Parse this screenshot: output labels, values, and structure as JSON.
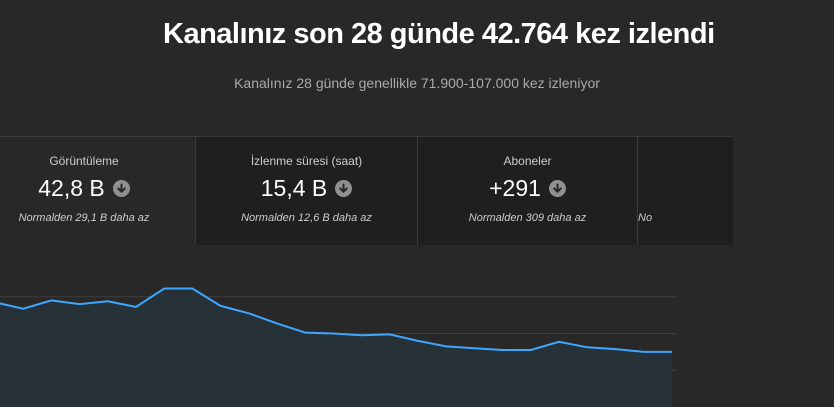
{
  "header": {
    "title": "Kanalınız son 28 günde 42.764 kez izlendi",
    "subtitle": "Kanalınız 28 günde genellikle 71.900-107.000 kez izleniyor"
  },
  "metrics": [
    {
      "label": "Görüntüleme",
      "value": "42,8 B",
      "note": "Normalden 29,1 B daha az",
      "trend_icon": "arrow-down-circle-icon"
    },
    {
      "label": "İzlenme süresi (saat)",
      "value": "15,4 B",
      "note": "Normalden 12,6 B daha az",
      "trend_icon": "arrow-down-circle-icon"
    },
    {
      "label": "Aboneler",
      "value": "+291",
      "note": "Normalden 309 daha az",
      "trend_icon": "arrow-down-circle-icon"
    },
    {
      "label": "",
      "value": "",
      "note": "No",
      "trend_icon": ""
    }
  ],
  "colors": {
    "background": "#282828",
    "card_background": "#1f1f1f",
    "line": "#3ea6ff",
    "area_fill": "#263238",
    "text_secondary": "#aaaaaa"
  },
  "chart_data": {
    "type": "area",
    "title": "",
    "xlabel": "",
    "ylabel": "",
    "grid": true,
    "series": [
      {
        "values": [
          1.14,
          1.07,
          1.16,
          1.12,
          1.15,
          1.09,
          1.29,
          1.29,
          1.1,
          1.02,
          0.91,
          0.81,
          0.8,
          0.78,
          0.79,
          0.72,
          0.66,
          0.64,
          0.62,
          0.62,
          0.71,
          0.65,
          0.63,
          0.6,
          0.6
        ]
      }
    ],
    "ylim": [
      0,
      1.6
    ]
  }
}
